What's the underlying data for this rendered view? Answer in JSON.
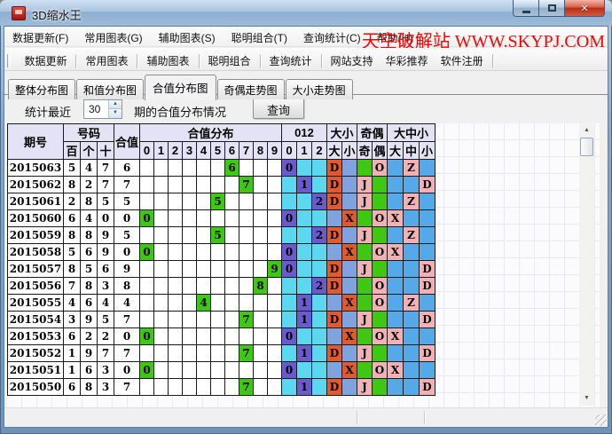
{
  "window": {
    "title": "3D缩水王",
    "buttons": {
      "minimize": "minimize",
      "maximize": "maximize",
      "close": "x"
    }
  },
  "menu": {
    "items": [
      "数据更新(F)",
      "常用图表(G)",
      "辅助图表(S)",
      "聪明组合(T)",
      "查询统计(C)",
      "帮助(H)"
    ],
    "watermark": "天空破解站 WWW.SKYPJ.COM",
    "watermark_color": "#ff0000"
  },
  "toolbar": {
    "items": [
      "数据更新",
      "常用图表",
      "辅助图表",
      "聪明组合",
      "查询统计",
      "网站支持",
      "华彩推荐",
      "软件注册"
    ],
    "separators_after": [
      0,
      1,
      2,
      3,
      4,
      7
    ]
  },
  "tabs": {
    "items": [
      "整体分布图",
      "和值分布图",
      "合值分布图",
      "奇偶走势图",
      "大小走势图"
    ],
    "active_index": 2
  },
  "controls": {
    "prefix_label": "统计最近",
    "period_value": "30",
    "suffix_label": "期的合值分布情况",
    "query_button": "查询"
  },
  "colors": {
    "green": "#3fc713",
    "purple": "#6a5acd",
    "cyan": "#5bd7f0",
    "orange": "#e05a2d",
    "periwinkle": "#7fa3de",
    "pink": "#f3b1b5",
    "sky": "#55a9e9",
    "header_bg": "#e3e3f5"
  },
  "table": {
    "header": {
      "period": "期号",
      "number_group": "号码",
      "digit_cols": [
        "百",
        "个",
        "十"
      ],
      "sum_col": "合值",
      "dist_group": "合值分布",
      "dist_cols": [
        "0",
        "1",
        "2",
        "3",
        "4",
        "5",
        "6",
        "7",
        "8",
        "9"
      ],
      "mod_group": "012",
      "mod_cols": [
        "0",
        "1",
        "2"
      ],
      "size_group": "大小",
      "size_cols": [
        "大",
        "小"
      ],
      "parity_group": "奇偶",
      "parity_cols": [
        "奇",
        "偶"
      ],
      "dzx_group": "大中小",
      "dzx_cols": [
        "大",
        "中",
        "小"
      ]
    },
    "rows": [
      {
        "period": "2015063",
        "digits": [
          "5",
          "4",
          "7"
        ],
        "sum": "6",
        "dist": 6,
        "mod": 0,
        "size": "D",
        "parity": "O",
        "dzx": "Z"
      },
      {
        "period": "2015062",
        "digits": [
          "8",
          "2",
          "7"
        ],
        "sum": "7",
        "dist": 7,
        "mod": 1,
        "size": "D",
        "parity": "J",
        "dzx": "D"
      },
      {
        "period": "2015061",
        "digits": [
          "2",
          "8",
          "5"
        ],
        "sum": "5",
        "dist": 5,
        "mod": 2,
        "size": "D",
        "parity": "J",
        "dzx": "Z"
      },
      {
        "period": "2015060",
        "digits": [
          "6",
          "4",
          "0"
        ],
        "sum": "0",
        "dist": 0,
        "mod": 0,
        "size": "X",
        "parity": "O",
        "dzx": "X"
      },
      {
        "period": "2015059",
        "digits": [
          "8",
          "8",
          "9"
        ],
        "sum": "5",
        "dist": 5,
        "mod": 2,
        "size": "D",
        "parity": "J",
        "dzx": "Z"
      },
      {
        "period": "2015058",
        "digits": [
          "5",
          "6",
          "9"
        ],
        "sum": "0",
        "dist": 0,
        "mod": 0,
        "size": "X",
        "parity": "O",
        "dzx": "X"
      },
      {
        "period": "2015057",
        "digits": [
          "8",
          "5",
          "6"
        ],
        "sum": "9",
        "dist": 9,
        "mod": 0,
        "size": "D",
        "parity": "J",
        "dzx": "D"
      },
      {
        "period": "2015056",
        "digits": [
          "7",
          "8",
          "3"
        ],
        "sum": "8",
        "dist": 8,
        "mod": 2,
        "size": "D",
        "parity": "O",
        "dzx": "D"
      },
      {
        "period": "2015055",
        "digits": [
          "4",
          "6",
          "4"
        ],
        "sum": "4",
        "dist": 4,
        "mod": 1,
        "size": "X",
        "parity": "O",
        "dzx": "Z"
      },
      {
        "period": "2015054",
        "digits": [
          "3",
          "9",
          "5"
        ],
        "sum": "7",
        "dist": 7,
        "mod": 1,
        "size": "D",
        "parity": "J",
        "dzx": "D"
      },
      {
        "period": "2015053",
        "digits": [
          "6",
          "2",
          "2"
        ],
        "sum": "0",
        "dist": 0,
        "mod": 0,
        "size": "X",
        "parity": "O",
        "dzx": "X"
      },
      {
        "period": "2015052",
        "digits": [
          "1",
          "9",
          "7"
        ],
        "sum": "7",
        "dist": 7,
        "mod": 1,
        "size": "D",
        "parity": "J",
        "dzx": "D"
      },
      {
        "period": "2015051",
        "digits": [
          "1",
          "6",
          "3"
        ],
        "sum": "0",
        "dist": 0,
        "mod": 0,
        "size": "X",
        "parity": "O",
        "dzx": "X"
      },
      {
        "period": "2015050",
        "digits": [
          "6",
          "8",
          "3"
        ],
        "sum": "7",
        "dist": 7,
        "mod": 1,
        "size": "D",
        "parity": "J",
        "dzx": "D"
      }
    ]
  },
  "scrollbar": {
    "up_glyph": "▲",
    "down_glyph": "▼"
  },
  "statusbar": {
    "sections": [
      "",
      "",
      ""
    ]
  }
}
